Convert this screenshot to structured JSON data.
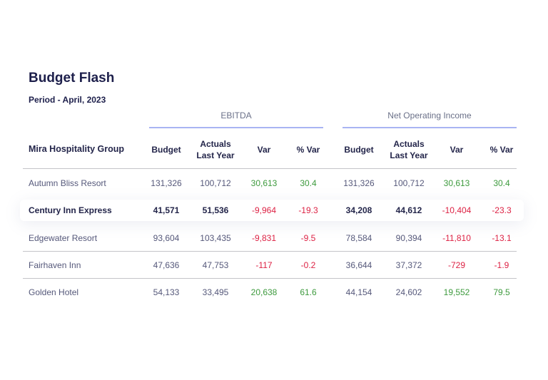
{
  "title": "Budget Flash",
  "period": "Period - April, 2023",
  "groups": [
    "EBITDA",
    "Net Operating Income"
  ],
  "company": "Mira Hospitality Group",
  "columns": [
    "Budget",
    "Actuals Last Year",
    "Var",
    "% Var"
  ],
  "colors": {
    "positive": "#3d9a3d",
    "negative": "#dd2244",
    "accent_line": "#a9b4f3"
  },
  "rows": [
    {
      "name": "Autumn Bliss Resort",
      "values": [
        "131,326",
        "100,712",
        "30,613",
        "30.4",
        "131,326",
        "100,712",
        "30,613",
        "30.4"
      ]
    },
    {
      "name": "Century Inn Express",
      "highlighted": true,
      "values": [
        "41,571",
        "51,536",
        "-9,964",
        "-19.3",
        "34,208",
        "44,612",
        "-10,404",
        "-23.3"
      ]
    },
    {
      "name": "Edgewater Resort",
      "values": [
        "93,604",
        "103,435",
        "-9,831",
        "-9.5",
        "78,584",
        "90,394",
        "-11,810",
        "-13.1"
      ]
    },
    {
      "name": "Fairhaven Inn",
      "values": [
        "47,636",
        "47,753",
        "-117",
        "-0.2",
        "36,644",
        "37,372",
        "-729",
        "-1.9"
      ]
    },
    {
      "name": "Golden Hotel",
      "values": [
        "54,133",
        "33,495",
        "20,638",
        "61.6",
        "44,154",
        "24,602",
        "19,552",
        "79.5"
      ]
    }
  ]
}
